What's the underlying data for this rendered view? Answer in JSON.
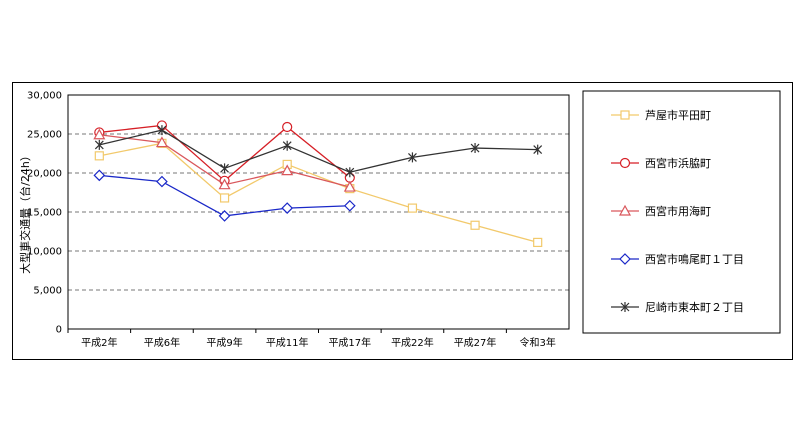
{
  "chart_data": {
    "type": "line",
    "title": "",
    "xlabel": "",
    "ylabel": "大型車交通量（台/24h）",
    "ylim": [
      0,
      30000
    ],
    "yticks": [
      0,
      5000,
      10000,
      15000,
      20000,
      25000,
      30000
    ],
    "ytick_labels": [
      "0",
      "5,000",
      "10,000",
      "15,000",
      "20,000",
      "25,000",
      "30,000"
    ],
    "categories": [
      "平成2年",
      "平成6年",
      "平成9年",
      "平成11年",
      "平成17年",
      "平成22年",
      "平成27年",
      "令和3年"
    ],
    "grid": "horizontal-dashed",
    "legend_position": "right",
    "series": [
      {
        "name": "芦屋市平田町",
        "marker": "square",
        "color": "#f2c96b",
        "values": [
          22200,
          23800,
          16800,
          21100,
          18000,
          15500,
          13300,
          11100
        ]
      },
      {
        "name": "西宮市浜脇町",
        "marker": "circle",
        "color": "#d61f26",
        "values": [
          25200,
          26100,
          19000,
          25900,
          19400,
          null,
          null,
          null
        ]
      },
      {
        "name": "西宮市用海町",
        "marker": "triangle",
        "color": "#d9575c",
        "values": [
          24900,
          23900,
          18500,
          20300,
          18200,
          null,
          null,
          null
        ]
      },
      {
        "name": "西宮市鳴尾町１丁目",
        "marker": "diamond",
        "color": "#1a28c8",
        "values": [
          19700,
          18900,
          14500,
          15500,
          15800,
          null,
          null,
          null
        ]
      },
      {
        "name": "尼崎市東本町２丁目",
        "marker": "asterisk",
        "color": "#333333",
        "values": [
          23600,
          25500,
          20600,
          23500,
          20100,
          22000,
          23200,
          23000
        ]
      }
    ]
  }
}
